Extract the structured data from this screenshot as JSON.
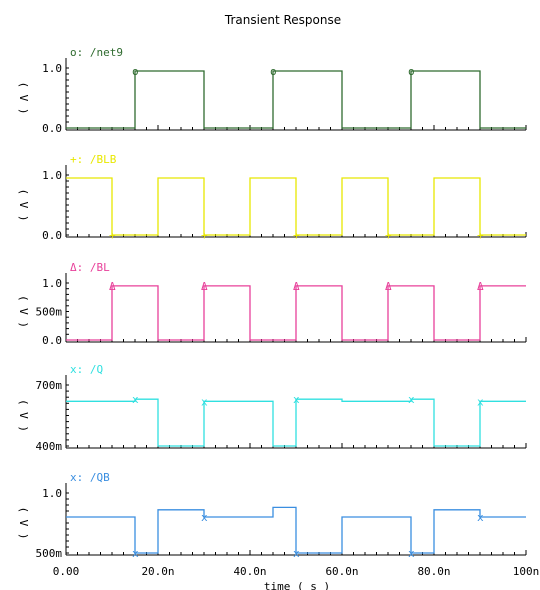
{
  "chart_data": {
    "type": "line",
    "title": "Transient Response",
    "xlabel": "time ( s )",
    "x_ticks": [
      "0.00",
      "20.0n",
      "40.0n",
      "60.0n",
      "80.0n",
      "100n"
    ],
    "xlim": [
      0,
      100
    ],
    "panels": [
      {
        "name": "/net9",
        "marker": "o",
        "color": "#2f6b2f",
        "ylabel": "( V )",
        "ylim": [
          0,
          1.0
        ],
        "y_ticks": [
          {
            "v": 1.0,
            "label": "1.0"
          },
          {
            "v": 0,
            "label": "0.0"
          }
        ],
        "points": [
          [
            0,
            0
          ],
          [
            15,
            0
          ],
          [
            15,
            0.95
          ],
          [
            30,
            0.95
          ],
          [
            30,
            0
          ],
          [
            45,
            0
          ],
          [
            45,
            0.95
          ],
          [
            60,
            0.95
          ],
          [
            60,
            0
          ],
          [
            75,
            0
          ],
          [
            75,
            0.95
          ],
          [
            90,
            0.95
          ],
          [
            90,
            0
          ],
          [
            100,
            0
          ]
        ]
      },
      {
        "name": "/BLB",
        "marker": "+",
        "color": "#e8e800",
        "ylabel": "( V )",
        "ylim": [
          0,
          1.0
        ],
        "y_ticks": [
          {
            "v": 1.0,
            "label": "1.0"
          },
          {
            "v": 0,
            "label": "0.0"
          }
        ],
        "points": [
          [
            0,
            0.95
          ],
          [
            10,
            0.95
          ],
          [
            10,
            0
          ],
          [
            20,
            0
          ],
          [
            20,
            0.95
          ],
          [
            30,
            0.95
          ],
          [
            30,
            0
          ],
          [
            40,
            0
          ],
          [
            40,
            0.95
          ],
          [
            50,
            0.95
          ],
          [
            50,
            0
          ],
          [
            60,
            0
          ],
          [
            60,
            0.95
          ],
          [
            70,
            0.95
          ],
          [
            70,
            0
          ],
          [
            80,
            0
          ],
          [
            80,
            0.95
          ],
          [
            90,
            0.95
          ],
          [
            90,
            0
          ],
          [
            100,
            0
          ]
        ]
      },
      {
        "name": "/BL",
        "marker": "Δ",
        "color": "#e8409a",
        "ylabel": "( V )",
        "ylim": [
          0,
          1.0
        ],
        "y_ticks": [
          {
            "v": 1.0,
            "label": "1.0"
          },
          {
            "v": 0.5,
            "label": "500m"
          },
          {
            "v": 0,
            "label": "0.0"
          }
        ],
        "points": [
          [
            0,
            0
          ],
          [
            10,
            0
          ],
          [
            10,
            0.95
          ],
          [
            20,
            0.95
          ],
          [
            20,
            0
          ],
          [
            30,
            0
          ],
          [
            30,
            0.95
          ],
          [
            40,
            0.95
          ],
          [
            40,
            0
          ],
          [
            50,
            0
          ],
          [
            50,
            0.95
          ],
          [
            60,
            0.95
          ],
          [
            60,
            0
          ],
          [
            70,
            0
          ],
          [
            70,
            0.95
          ],
          [
            80,
            0.95
          ],
          [
            80,
            0
          ],
          [
            90,
            0
          ],
          [
            90,
            0.95
          ],
          [
            100,
            0.95
          ]
        ]
      },
      {
        "name": "/Q",
        "marker": "x",
        "color": "#30e0e0",
        "ylabel": "( V )",
        "ylim": [
          0.4,
          0.7
        ],
        "y_ticks": [
          {
            "v": 0.7,
            "label": "700m"
          },
          {
            "v": 0.4,
            "label": "400m"
          }
        ],
        "points": [
          [
            0,
            0.62
          ],
          [
            15,
            0.62
          ],
          [
            15,
            0.63
          ],
          [
            20,
            0.63
          ],
          [
            20,
            0.4
          ],
          [
            30,
            0.4
          ],
          [
            30,
            0.62
          ],
          [
            45,
            0.62
          ],
          [
            45,
            0.4
          ],
          [
            50,
            0.4
          ],
          [
            50,
            0.63
          ],
          [
            60,
            0.63
          ],
          [
            60,
            0.62
          ],
          [
            75,
            0.62
          ],
          [
            75,
            0.63
          ],
          [
            80,
            0.63
          ],
          [
            80,
            0.4
          ],
          [
            90,
            0.4
          ],
          [
            90,
            0.62
          ],
          [
            100,
            0.62
          ]
        ]
      },
      {
        "name": "/QB",
        "marker": "x",
        "color": "#3a8ee0",
        "ylabel": "( V )",
        "ylim": [
          0.5,
          1.0
        ],
        "y_ticks": [
          {
            "v": 1.0,
            "label": "1.0"
          },
          {
            "v": 0.5,
            "label": "500m"
          }
        ],
        "points": [
          [
            0,
            0.8
          ],
          [
            15,
            0.8
          ],
          [
            15,
            0.5
          ],
          [
            20,
            0.5
          ],
          [
            20,
            0.86
          ],
          [
            30,
            0.86
          ],
          [
            30,
            0.8
          ],
          [
            45,
            0.8
          ],
          [
            45,
            0.88
          ],
          [
            50,
            0.88
          ],
          [
            50,
            0.5
          ],
          [
            60,
            0.5
          ],
          [
            60,
            0.8
          ],
          [
            75,
            0.8
          ],
          [
            75,
            0.5
          ],
          [
            80,
            0.5
          ],
          [
            80,
            0.86
          ],
          [
            90,
            0.86
          ],
          [
            90,
            0.8
          ],
          [
            100,
            0.8
          ]
        ]
      }
    ]
  }
}
